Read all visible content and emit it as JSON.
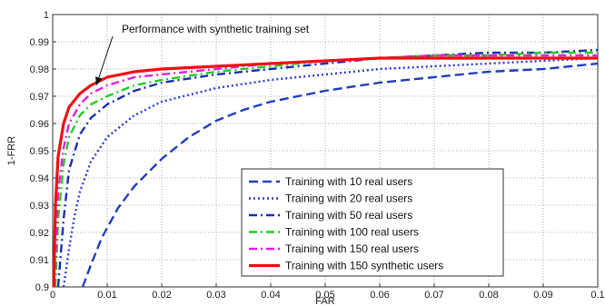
{
  "chart_data": {
    "type": "line",
    "title": "",
    "xlabel": "FAR",
    "ylabel": "1-FRR",
    "xlim": [
      0,
      0.1
    ],
    "ylim": [
      0.9,
      1.0
    ],
    "grid": true,
    "legend_position": "bottom-right",
    "x_ticks": [
      0,
      0.01,
      0.02,
      0.03,
      0.04,
      0.05,
      0.06,
      0.07,
      0.08,
      0.09,
      0.1
    ],
    "x_tick_labels": [
      "0",
      "0.01",
      "0.02",
      "0.03",
      "0.04",
      "0.05",
      "0.06",
      "0.07",
      "0.08",
      "0.09",
      "0.1"
    ],
    "y_ticks": [
      0.9,
      0.91,
      0.92,
      0.93,
      0.94,
      0.95,
      0.96,
      0.97,
      0.98,
      0.99,
      1.0
    ],
    "y_tick_labels": [
      "0.9",
      "0.91",
      "0.92",
      "0.93",
      "0.94",
      "0.95",
      "0.96",
      "0.97",
      "0.98",
      "0.99",
      "1"
    ],
    "annotation": {
      "text": "Performance with synthetic training set",
      "x": 0.008,
      "y": 0.974
    },
    "series": [
      {
        "name": "Training with 10 real users",
        "color": "#1f3fbf",
        "style": "dashed",
        "x": [
          0.0055,
          0.007,
          0.009,
          0.012,
          0.015,
          0.02,
          0.025,
          0.03,
          0.035,
          0.04,
          0.05,
          0.06,
          0.07,
          0.08,
          0.09,
          0.1
        ],
        "y": [
          0.9,
          0.908,
          0.918,
          0.929,
          0.937,
          0.947,
          0.955,
          0.961,
          0.965,
          0.968,
          0.972,
          0.975,
          0.977,
          0.979,
          0.98,
          0.982
        ]
      },
      {
        "name": "Training with 20 real users",
        "color": "#2a3fd6",
        "style": "dotted",
        "x": [
          0.002,
          0.003,
          0.004,
          0.005,
          0.007,
          0.01,
          0.015,
          0.02,
          0.03,
          0.04,
          0.05,
          0.06,
          0.07,
          0.08,
          0.09,
          0.1
        ],
        "y": [
          0.9,
          0.914,
          0.926,
          0.935,
          0.946,
          0.955,
          0.963,
          0.968,
          0.973,
          0.976,
          0.978,
          0.98,
          0.981,
          0.982,
          0.983,
          0.984
        ]
      },
      {
        "name": "Training with 50 real users",
        "color": "#1a2fb0",
        "style": "dashdot",
        "x": [
          0.001,
          0.002,
          0.003,
          0.005,
          0.007,
          0.01,
          0.015,
          0.02,
          0.03,
          0.04,
          0.05,
          0.06,
          0.07,
          0.08,
          0.09,
          0.1
        ],
        "y": [
          0.9,
          0.925,
          0.943,
          0.956,
          0.962,
          0.967,
          0.972,
          0.975,
          0.978,
          0.98,
          0.982,
          0.984,
          0.985,
          0.986,
          0.986,
          0.987
        ]
      },
      {
        "name": "Training with 100 real users",
        "color": "#22cc22",
        "style": "dashdot",
        "x": [
          0.0005,
          0.001,
          0.002,
          0.003,
          0.005,
          0.007,
          0.01,
          0.015,
          0.02,
          0.03,
          0.04,
          0.05,
          0.06,
          0.07,
          0.08,
          0.09,
          0.1
        ],
        "y": [
          0.9,
          0.925,
          0.945,
          0.955,
          0.963,
          0.967,
          0.97,
          0.974,
          0.976,
          0.979,
          0.981,
          0.983,
          0.984,
          0.985,
          0.985,
          0.986,
          0.986
        ]
      },
      {
        "name": "Training with 150 real users",
        "color": "#e020e0",
        "style": "dashdot",
        "x": [
          0.0003,
          0.001,
          0.002,
          0.003,
          0.005,
          0.007,
          0.01,
          0.015,
          0.02,
          0.03,
          0.04,
          0.05,
          0.06,
          0.07,
          0.08,
          0.09,
          0.1
        ],
        "y": [
          0.9,
          0.935,
          0.951,
          0.96,
          0.967,
          0.971,
          0.974,
          0.977,
          0.978,
          0.98,
          0.982,
          0.983,
          0.984,
          0.985,
          0.985,
          0.985,
          0.985
        ]
      },
      {
        "name": "Training with 150 synthetic users",
        "color": "#ee1111",
        "style": "solid",
        "x": [
          0.0002,
          0.0005,
          0.001,
          0.002,
          0.003,
          0.005,
          0.007,
          0.01,
          0.015,
          0.02,
          0.03,
          0.04,
          0.05,
          0.06,
          0.07,
          0.08,
          0.09,
          0.1
        ],
        "y": [
          0.9,
          0.93,
          0.948,
          0.96,
          0.966,
          0.971,
          0.974,
          0.977,
          0.979,
          0.98,
          0.981,
          0.982,
          0.983,
          0.984,
          0.984,
          0.984,
          0.984,
          0.984
        ]
      }
    ]
  }
}
